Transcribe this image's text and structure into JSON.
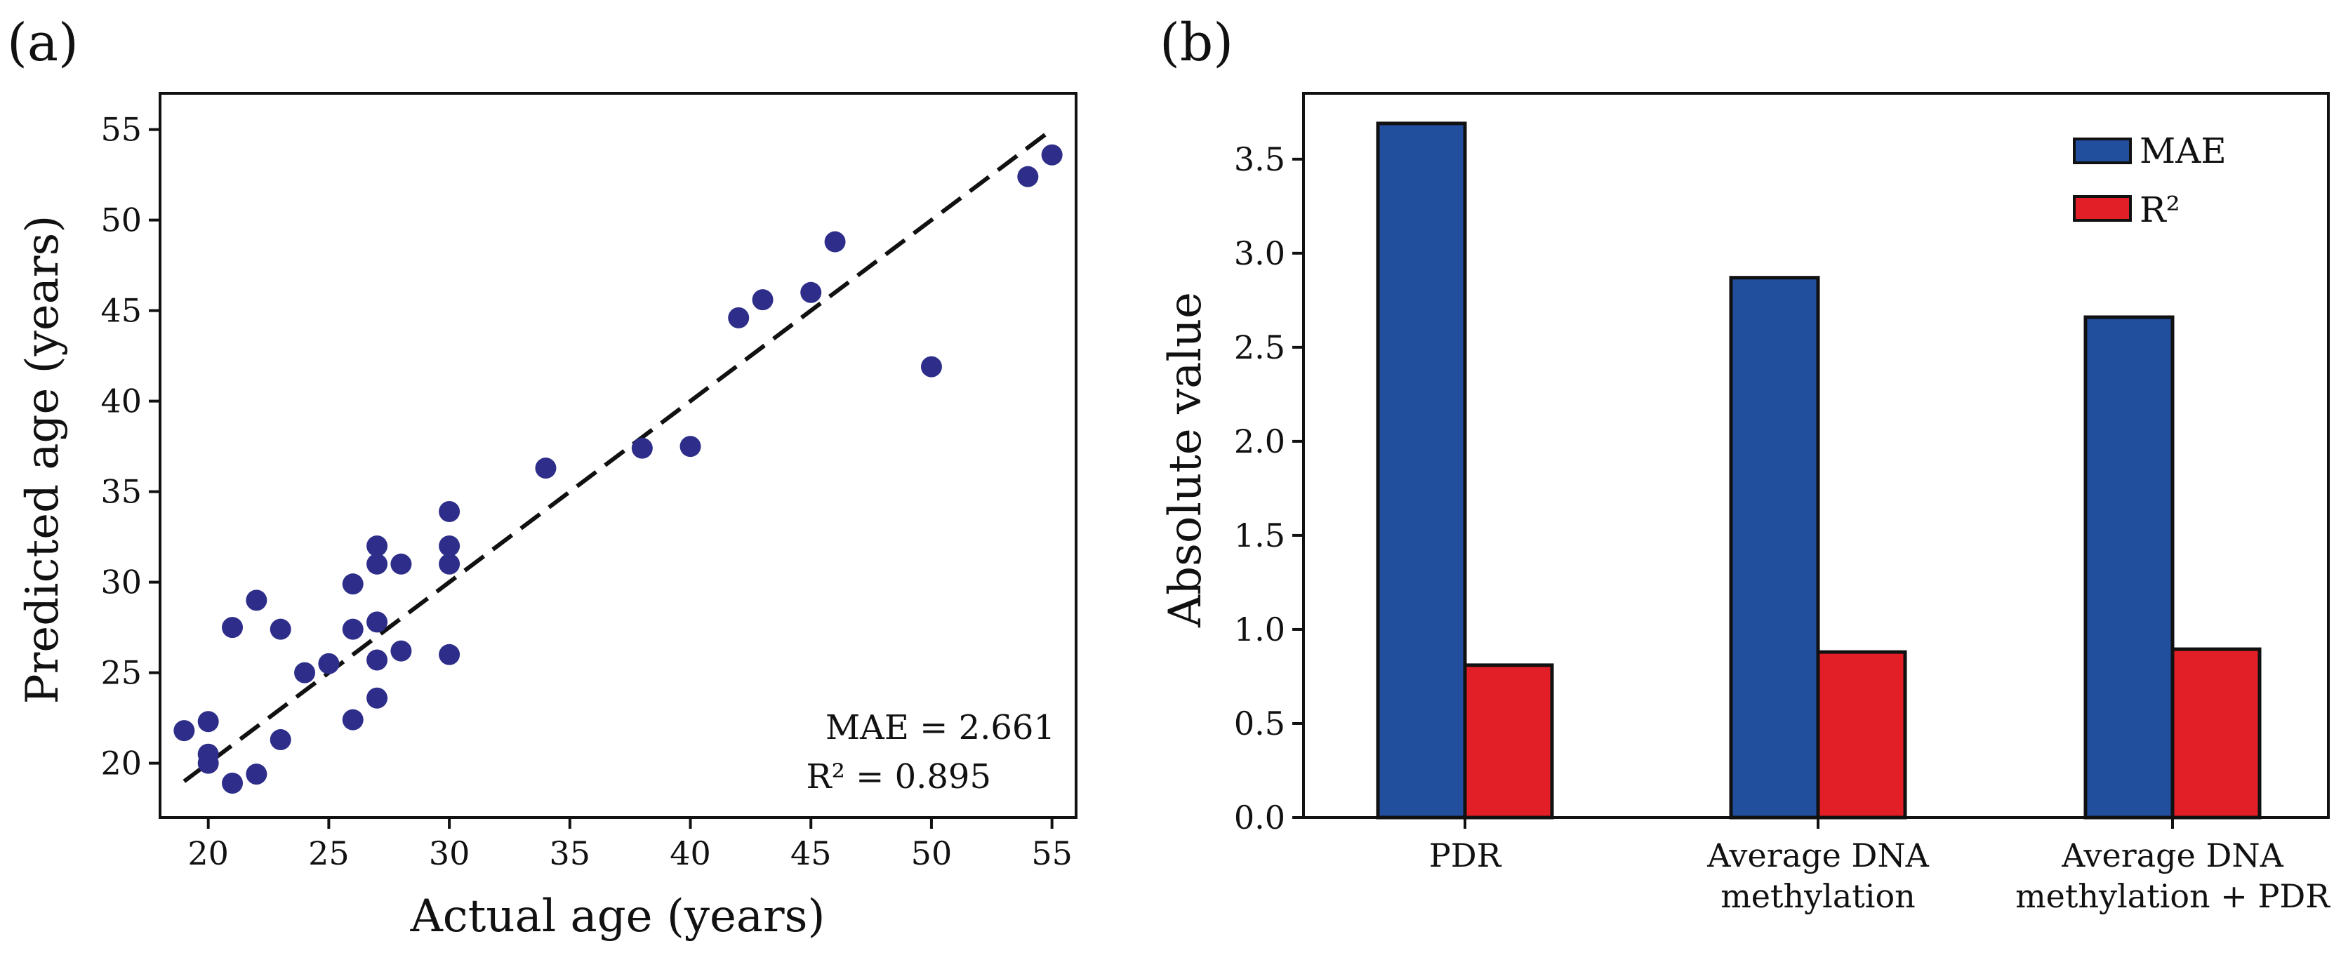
{
  "panel_a": {
    "label": "(a)",
    "annotation_mae": "MAE = 2.661",
    "annotation_r2": "R² = 0.895"
  },
  "panel_b": {
    "label": "(b)"
  },
  "chart_data": [
    {
      "type": "scatter",
      "xlabel": "Actual age (years)",
      "ylabel": "Predicted age (years)",
      "xlim": [
        18,
        56
      ],
      "ylim": [
        17,
        57
      ],
      "xticks": [
        20,
        25,
        30,
        35,
        40,
        45,
        50,
        55
      ],
      "yticks": [
        20,
        25,
        30,
        35,
        40,
        45,
        50,
        55
      ],
      "grid": false,
      "point_color": "#2e2e8a",
      "points": [
        {
          "x": 19,
          "y": 21.8
        },
        {
          "x": 20,
          "y": 22.3
        },
        {
          "x": 20,
          "y": 20.5
        },
        {
          "x": 20,
          "y": 20.0
        },
        {
          "x": 21,
          "y": 18.9
        },
        {
          "x": 22,
          "y": 19.4
        },
        {
          "x": 21,
          "y": 27.5
        },
        {
          "x": 22,
          "y": 29.0
        },
        {
          "x": 23,
          "y": 27.4
        },
        {
          "x": 23,
          "y": 21.3
        },
        {
          "x": 24,
          "y": 25.0
        },
        {
          "x": 25,
          "y": 25.5
        },
        {
          "x": 26,
          "y": 22.4
        },
        {
          "x": 26,
          "y": 27.4
        },
        {
          "x": 26,
          "y": 29.9
        },
        {
          "x": 27,
          "y": 32.0
        },
        {
          "x": 27,
          "y": 31.0
        },
        {
          "x": 27,
          "y": 27.8
        },
        {
          "x": 27,
          "y": 25.7
        },
        {
          "x": 27,
          "y": 23.6
        },
        {
          "x": 28,
          "y": 31.0
        },
        {
          "x": 28,
          "y": 26.2
        },
        {
          "x": 30,
          "y": 33.9
        },
        {
          "x": 30,
          "y": 32.0
        },
        {
          "x": 30,
          "y": 31.0
        },
        {
          "x": 30,
          "y": 26.0
        },
        {
          "x": 34,
          "y": 36.3
        },
        {
          "x": 38,
          "y": 37.4
        },
        {
          "x": 40,
          "y": 37.5
        },
        {
          "x": 42,
          "y": 44.6
        },
        {
          "x": 43,
          "y": 45.6
        },
        {
          "x": 45,
          "y": 46.0
        },
        {
          "x": 46,
          "y": 48.8
        },
        {
          "x": 50,
          "y": 41.9
        },
        {
          "x": 54,
          "y": 52.4
        },
        {
          "x": 55,
          "y": 53.6
        }
      ],
      "reference_line": {
        "x": [
          19,
          55
        ],
        "y": [
          19,
          55
        ],
        "style": "dashed"
      }
    },
    {
      "type": "bar",
      "xlabel": "",
      "ylabel": "Absolute value",
      "ylim": [
        0,
        3.85
      ],
      "yticks": [
        "0.0",
        "0.5",
        "1.0",
        "1.5",
        "2.0",
        "2.5",
        "3.0",
        "3.5"
      ],
      "categories": [
        [
          "PDR"
        ],
        [
          "Average DNA",
          "methylation"
        ],
        [
          "Average DNA",
          "methylation + PDR"
        ]
      ],
      "series": [
        {
          "name": "MAE",
          "color": "#224e9e",
          "values": [
            3.69,
            2.87,
            2.66
          ]
        },
        {
          "name": "R²",
          "color": "#e21e26",
          "values": [
            0.81,
            0.88,
            0.895
          ]
        }
      ],
      "legend_position": "top-right",
      "grid": false
    }
  ]
}
